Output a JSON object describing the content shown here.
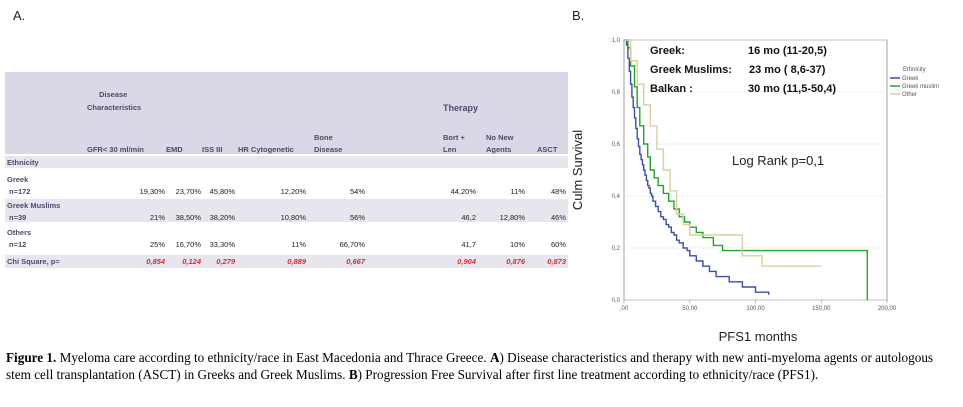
{
  "panel_a_label": "A.",
  "panel_b_label": "B.",
  "table": {
    "group_headers": {
      "disease": [
        "Disease",
        "Characteristics"
      ],
      "therapy": "Therapy"
    },
    "columns": [
      "GFR< 30 ml/min",
      "EMD",
      "ISS III",
      "HR Cytogenetic",
      [
        "Bone",
        "Disease"
      ],
      [
        "Bort +",
        "Len"
      ],
      [
        "No New",
        "Agents"
      ],
      "ASCT"
    ],
    "section_label": "Ethnicity",
    "rows": [
      {
        "name": "Greek",
        "n": "n=172",
        "values": [
          "19,30%",
          "23,70%",
          "45,80%",
          "12,20%",
          "54%",
          "44,20%",
          "11%",
          "48%"
        ]
      },
      {
        "name": "Greek Muslims",
        "n": "n=39",
        "values": [
          "21%",
          "38,50%",
          "38,20%",
          "10,80%",
          "56%",
          "46,2",
          "12,80%",
          "46%"
        ]
      },
      {
        "name": "Others",
        "n": "n=12",
        "values": [
          "25%",
          "16,70%",
          "33,30%",
          "11%",
          "66,70%",
          "41,7",
          "10%",
          "60%"
        ]
      }
    ],
    "chi": {
      "label": "Chi Square, p=",
      "values": [
        "0,854",
        "0,124",
        "0,279",
        "0,889",
        "0,667",
        "0,904",
        "0,876",
        "0,873"
      ]
    }
  },
  "chart_data": {
    "type": "line",
    "subtype": "kaplan-meier",
    "xlabel": "PFS1 months",
    "ylabel": "Culm Survival",
    "xlim": [
      0,
      200
    ],
    "ylim": [
      0,
      1.0
    ],
    "xticks": [
      ",00",
      "50,00",
      "100,00",
      "150,00",
      "200,00"
    ],
    "yticks": [
      "0,0",
      "0,2",
      "0,4",
      "0,6",
      "0,8",
      "1,0"
    ],
    "legend_title": "Ethnicity",
    "annotations": {
      "medians": [
        {
          "group": "Greek:",
          "value": "16 mo (11-20,5)"
        },
        {
          "group": "Greek Muslims:",
          "value": "23 mo ( 8,6-37)"
        },
        {
          "group": "Balkan :",
          "value": "30 mo (11,5-50,4)"
        }
      ],
      "logrank": "Log Rank p=0,1"
    },
    "series": [
      {
        "name": "Greek",
        "color": "#3b4fa8",
        "x": [
          0,
          2,
          3,
          4,
          5,
          6,
          7,
          8,
          9,
          10,
          11,
          12,
          13,
          14,
          15,
          16,
          17,
          18,
          19,
          20,
          21,
          22,
          24,
          26,
          28,
          30,
          32,
          34,
          36,
          38,
          40,
          42,
          45,
          48,
          50,
          55,
          60,
          65,
          70,
          80,
          90,
          100,
          110
        ],
        "y": [
          1.0,
          0.98,
          0.93,
          0.88,
          0.83,
          0.78,
          0.74,
          0.7,
          0.66,
          0.62,
          0.59,
          0.56,
          0.54,
          0.52,
          0.5,
          0.48,
          0.46,
          0.44,
          0.43,
          0.41,
          0.4,
          0.38,
          0.36,
          0.34,
          0.32,
          0.31,
          0.29,
          0.28,
          0.26,
          0.25,
          0.23,
          0.22,
          0.2,
          0.19,
          0.17,
          0.15,
          0.13,
          0.11,
          0.09,
          0.07,
          0.05,
          0.03,
          0.02
        ]
      },
      {
        "name": "Greek muslim",
        "color": "#22a32a",
        "x": [
          0,
          3,
          5,
          8,
          10,
          12,
          15,
          18,
          20,
          23,
          26,
          30,
          34,
          38,
          42,
          46,
          50,
          55,
          60,
          68,
          75,
          90,
          185
        ],
        "y": [
          1.0,
          0.97,
          0.9,
          0.82,
          0.74,
          0.67,
          0.6,
          0.55,
          0.5,
          0.47,
          0.44,
          0.41,
          0.38,
          0.35,
          0.32,
          0.3,
          0.28,
          0.26,
          0.24,
          0.21,
          0.19,
          0.19,
          0.0
        ]
      },
      {
        "name": "Other",
        "color": "#d9cfa0",
        "x": [
          0,
          5,
          10,
          15,
          20,
          25,
          30,
          35,
          40,
          45,
          50,
          60,
          75,
          90,
          105,
          150
        ],
        "y": [
          1.0,
          0.92,
          0.83,
          0.75,
          0.67,
          0.58,
          0.5,
          0.42,
          0.33,
          0.29,
          0.25,
          0.25,
          0.25,
          0.17,
          0.13,
          0.13
        ]
      }
    ]
  },
  "caption": {
    "lead": "Figure 1.",
    "text1": " Myeloma care according to ethnicity/race in East Macedonia and Thrace Greece. ",
    "a": "A",
    "text2": ") Disease characteristics and therapy with new anti-myeloma agents or autologous stem cell transplantation (ASCT) in Greeks and Greek Muslims. ",
    "b": "B",
    "text3": ") Progression Free Survival after first line treatment according to ethnicity/race (PFS1)."
  }
}
